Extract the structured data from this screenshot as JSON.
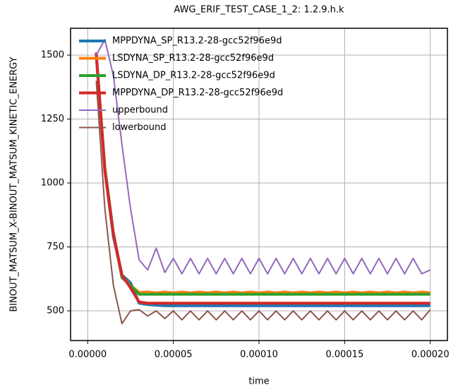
{
  "chart_data": {
    "type": "line",
    "title": "AWG_ERIF_TEST_CASE_1_2: 1.2.9.h.k",
    "xlabel": "time",
    "ylabel": "BINOUT_MATSUM_X-BINOUT_MATSUM_KINETIC_ENERGY",
    "x": [
      5e-06,
      1e-05,
      1.5e-05,
      2e-05,
      2.5e-05,
      3e-05,
      3.5e-05,
      4e-05,
      4.5e-05,
      5e-05,
      5.5e-05,
      6e-05,
      6.5e-05,
      7e-05,
      7.5e-05,
      8e-05,
      8.5e-05,
      9e-05,
      9.5e-05,
      0.0001,
      0.000105,
      0.00011,
      0.000115,
      0.00012,
      0.000125,
      0.00013,
      0.000135,
      0.00014,
      0.000145,
      0.00015,
      0.000155,
      0.00016,
      0.000165,
      0.00017,
      0.000175,
      0.00018,
      0.000185,
      0.00019,
      0.000195,
      0.0002
    ],
    "series": [
      {
        "name": "MPPDYNA_SP_R13.2-28-gcc52f96e9d",
        "color": "#1f77b4",
        "values": [
          1500,
          1050,
          790,
          640,
          610,
          530,
          525,
          522,
          520,
          520,
          520,
          520,
          520,
          520,
          520,
          520,
          520,
          520,
          520,
          520,
          520,
          520,
          520,
          520,
          520,
          520,
          520,
          520,
          520,
          520,
          520,
          520,
          520,
          520,
          520,
          520,
          520,
          520,
          520,
          520
        ]
      },
      {
        "name": "LSDYNA_SP_R13.2-28-gcc52f96e9d",
        "color": "#ff7f0e",
        "values": [
          1500,
          1060,
          800,
          635,
          600,
          572,
          574,
          570,
          574,
          570,
          574,
          570,
          574,
          570,
          574,
          570,
          574,
          570,
          574,
          570,
          574,
          570,
          574,
          570,
          574,
          570,
          574,
          570,
          574,
          570,
          574,
          570,
          574,
          570,
          574,
          570,
          574,
          570,
          574,
          570
        ]
      },
      {
        "name": "LSDYNA_DP_R13.2-28-gcc52f96e9d",
        "color": "#2ca02c",
        "values": [
          1500,
          1060,
          805,
          630,
          600,
          565,
          565,
          565,
          565,
          565,
          565,
          565,
          565,
          565,
          565,
          565,
          565,
          565,
          565,
          565,
          565,
          565,
          565,
          565,
          565,
          565,
          565,
          565,
          565,
          565,
          565,
          565,
          565,
          565,
          565,
          565,
          565,
          565,
          565,
          565
        ]
      },
      {
        "name": "MPPDYNA_DP_R13.2-28-gcc52f96e9d",
        "color": "#d62728",
        "values": [
          1510,
          1050,
          800,
          640,
          590,
          535,
          530,
          530,
          530,
          530,
          530,
          530,
          530,
          530,
          530,
          530,
          530,
          530,
          530,
          530,
          530,
          530,
          530,
          530,
          530,
          530,
          530,
          530,
          530,
          530,
          530,
          530,
          530,
          530,
          530,
          530,
          530,
          530,
          530,
          530
        ]
      },
      {
        "name": "upperbound",
        "color": "#9467bd",
        "values": [
          1500,
          1560,
          1420,
          1150,
          900,
          700,
          660,
          745,
          650,
          705,
          645,
          705,
          645,
          705,
          645,
          705,
          645,
          705,
          645,
          705,
          645,
          705,
          645,
          705,
          645,
          705,
          645,
          705,
          645,
          705,
          645,
          705,
          645,
          705,
          645,
          705,
          645,
          705,
          645,
          660
        ]
      },
      {
        "name": "lowerbound",
        "color": "#8c564b",
        "values": [
          1400,
          900,
          600,
          450,
          500,
          505,
          480,
          500,
          470,
          500,
          465,
          500,
          465,
          500,
          465,
          500,
          465,
          500,
          465,
          500,
          465,
          500,
          465,
          500,
          465,
          500,
          465,
          500,
          465,
          500,
          465,
          500,
          465,
          500,
          465,
          500,
          465,
          500,
          465,
          505
        ]
      }
    ],
    "xlim": [
      -1e-05,
      0.00021
    ],
    "xticks": [
      {
        "value": 0,
        "label": "0.00000"
      },
      {
        "value": 5e-05,
        "label": "0.00005"
      },
      {
        "value": 0.0001,
        "label": "0.00010"
      },
      {
        "value": 0.00015,
        "label": "0.00015"
      },
      {
        "value": 0.0002,
        "label": "0.00020"
      }
    ],
    "ylim": [
      384,
      1605
    ],
    "yticks": [
      500,
      750,
      1000,
      1250,
      1500
    ],
    "grid": true,
    "legend": "upper-left"
  }
}
